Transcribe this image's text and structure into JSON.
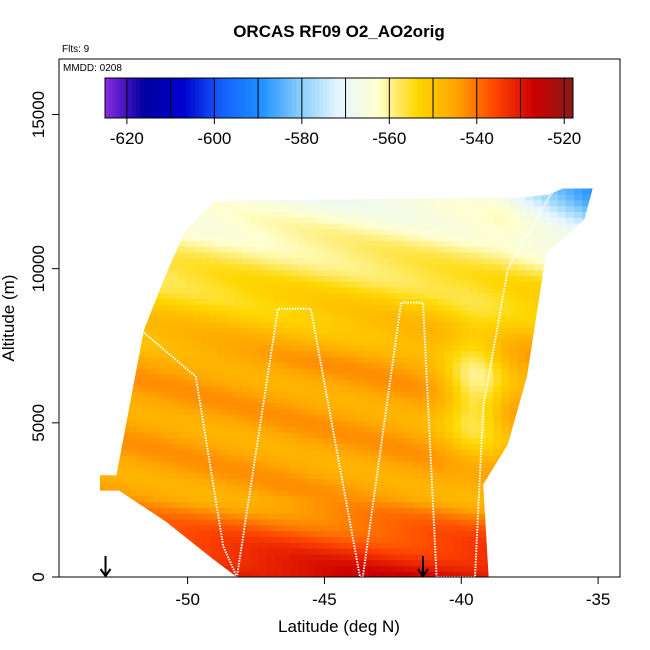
{
  "chart_data": {
    "type": "heatmap",
    "title": "ORCAS RF09 O2_AO2orig",
    "annotations": {
      "flights": "Flts: 9",
      "date": "MMDD: 0208"
    },
    "xlabel": "Latitude (deg N)",
    "ylabel": "Altitude (m)",
    "xlim": [
      -54.7,
      -34.2
    ],
    "ylim": [
      0,
      16800
    ],
    "x_ticks": [
      -50,
      -45,
      -40,
      -35
    ],
    "y_ticks": [
      0,
      5000,
      10000,
      15000
    ],
    "colorbar": {
      "range": [
        -625,
        -518
      ],
      "ticks": [
        -620,
        -600,
        -580,
        -560,
        -540,
        -520
      ],
      "boundaries": [
        -625,
        -620,
        -610,
        -600,
        -590,
        -580,
        -570,
        -560,
        -550,
        -540,
        -530,
        -520,
        -518
      ],
      "colors": [
        "#8a2be2",
        "#0000a0",
        "#0000cd",
        "#1560ff",
        "#1e90ff",
        "#87cefa",
        "#e6f6ff",
        "#ffffd0",
        "#ffd700",
        "#ffa500",
        "#ff4500",
        "#cd0000",
        "#8b1a1a"
      ]
    },
    "field_summary": {
      "lat_range": [
        -53.2,
        -35.2
      ],
      "alt_range": [
        0,
        12700
      ],
      "value_near_surface": -528,
      "value_mid_altitude": -545,
      "value_upper": -568,
      "value_top_north": -590
    },
    "flight_track": {
      "lat": [
        -52.7,
        -51.7,
        -49.7,
        -48.7,
        -48.2,
        -46.7,
        -45.5,
        -43.7,
        -43.6,
        -42.2,
        -41.4,
        -40.9,
        -39.5,
        -39.2,
        -38.3,
        -36.8,
        -36.5,
        -35.2
      ],
      "alt": [
        3300,
        8000,
        6500,
        1000,
        0,
        8700,
        8700,
        0,
        0,
        8900,
        8900,
        0,
        0,
        5500,
        10000,
        12300,
        12700,
        12700
      ]
    },
    "markers": [
      {
        "symbol": "arrow-down",
        "lat": -53.0,
        "alt": 0
      },
      {
        "symbol": "arrow-down",
        "lat": -41.4,
        "alt": 0
      }
    ]
  }
}
